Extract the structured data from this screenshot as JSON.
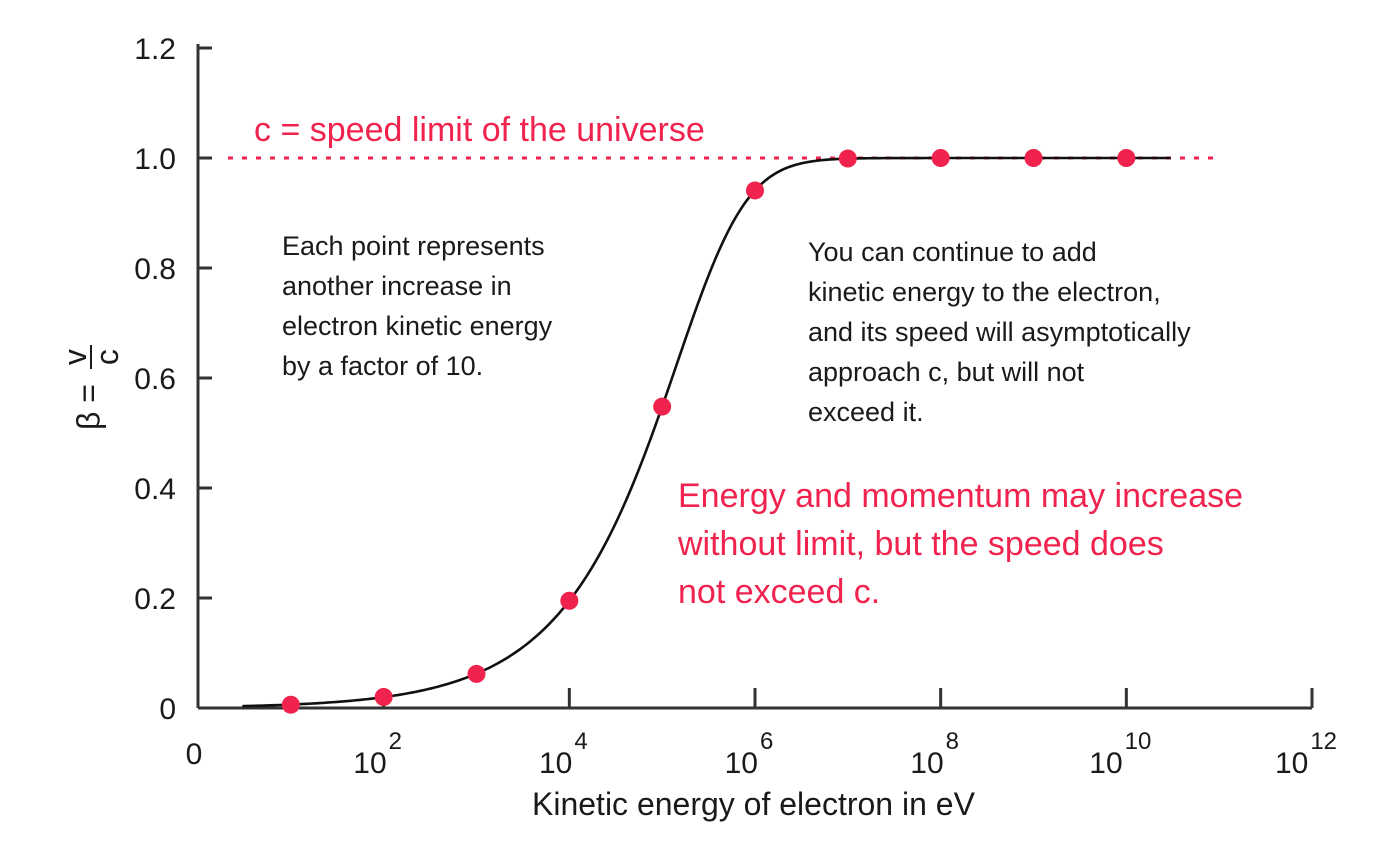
{
  "chart_data": {
    "type": "scatter",
    "xscale": "log10",
    "xlim": [
      1,
      1000000000000.0
    ],
    "ylim": [
      0,
      1.2
    ],
    "xlabel": "Kinetic energy of electron in eV",
    "ylabel_prefix": "β =",
    "ylabel_num": "v",
    "ylabel_den": "c",
    "x_ticks": [
      {
        "base": "0",
        "exp": "",
        "x": 1
      },
      {
        "base": "10",
        "exp": "2",
        "x": 100
      },
      {
        "base": "10",
        "exp": "4",
        "x": 10000
      },
      {
        "base": "10",
        "exp": "6",
        "x": 1000000
      },
      {
        "base": "10",
        "exp": "8",
        "x": 100000000
      },
      {
        "base": "10",
        "exp": "10",
        "x": 10000000000
      },
      {
        "base": "10",
        "exp": "12",
        "x": 1000000000000
      }
    ],
    "y_ticks": [
      {
        "label": "0",
        "y": 0
      },
      {
        "label": "0.2",
        "y": 0.2
      },
      {
        "label": "0.4",
        "y": 0.4
      },
      {
        "label": "0.6",
        "y": 0.6
      },
      {
        "label": "0.8",
        "y": 0.8
      },
      {
        "label": "1.0",
        "y": 1.0
      },
      {
        "label": "1.2",
        "y": 1.2
      }
    ],
    "points": [
      {
        "x": 10,
        "y": 0.006
      },
      {
        "x": 100,
        "y": 0.02
      },
      {
        "x": 1000,
        "y": 0.062
      },
      {
        "x": 10000,
        "y": 0.195
      },
      {
        "x": 100000,
        "y": 0.548
      },
      {
        "x": 1000000,
        "y": 0.941
      },
      {
        "x": 10000000,
        "y": 0.999
      },
      {
        "x": 100000000,
        "y": 1.0
      },
      {
        "x": 1000000000,
        "y": 1.0
      },
      {
        "x": 10000000000,
        "y": 1.0
      }
    ],
    "curve": "relativistic electron speed, beta = sqrt(1 - 1/(1 + KE/511000)^2)",
    "rest_energy_ev": 511000,
    "limit_line": {
      "y": 1.0,
      "label": "c = speed limit of the universe",
      "color": "#f0224e"
    },
    "annotations": [
      {
        "id": "points-note",
        "color": "#1a1a1a",
        "lines": [
          "Each point represents",
          "another increase in",
          "electron  kinetic energy",
          "by a factor of 10."
        ]
      },
      {
        "id": "asymptote-note",
        "color": "#1a1a1a",
        "lines": [
          "You can continue to add",
          "kinetic energy to the electron,",
          "and its speed will asymptotically",
          "approach c, but will not",
          "exceed it."
        ]
      },
      {
        "id": "energy-note",
        "color": "#f0224e",
        "lines": [
          "Energy and momentum may increase",
          "without limit, but the speed does",
          "not exceed c."
        ]
      }
    ],
    "grid": false,
    "legend": "none"
  }
}
